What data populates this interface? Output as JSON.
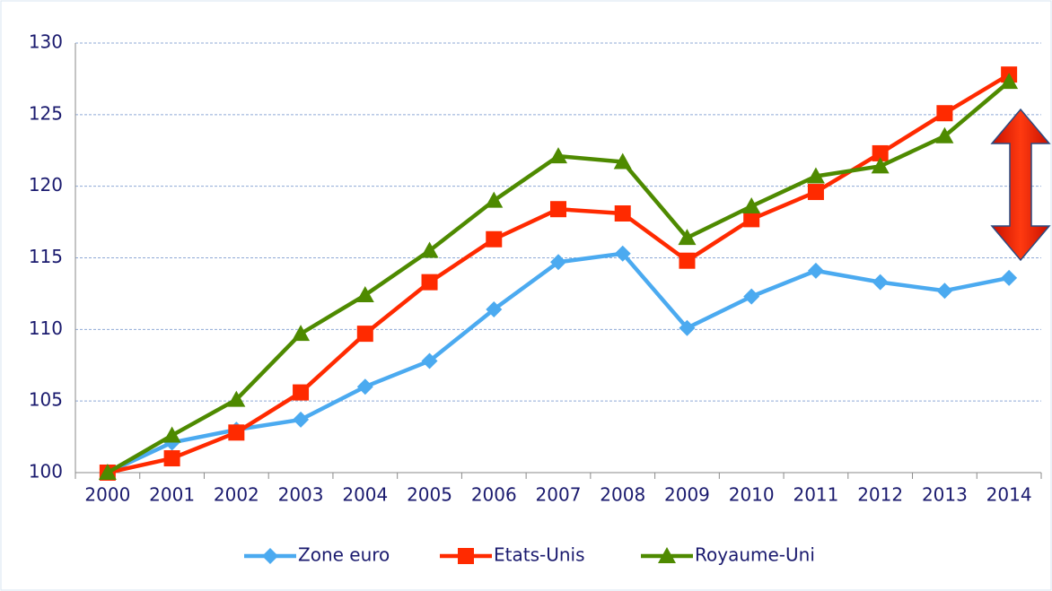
{
  "chart_data": {
    "type": "line",
    "categories": [
      "2000",
      "2001",
      "2002",
      "2003",
      "2004",
      "2005",
      "2006",
      "2007",
      "2008",
      "2009",
      "2010",
      "2011",
      "2012",
      "2013",
      "2014"
    ],
    "series": [
      {
        "name": "Zone euro",
        "color": "#4baaf0",
        "marker": "diamond",
        "values": [
          100,
          102.1,
          103.0,
          103.7,
          106.0,
          107.8,
          111.4,
          114.7,
          115.3,
          110.1,
          112.3,
          114.1,
          113.3,
          112.7,
          113.6
        ]
      },
      {
        "name": "Etats-Unis",
        "color": "#ff2a00",
        "marker": "square",
        "values": [
          100,
          101.0,
          102.8,
          105.6,
          109.7,
          113.3,
          116.3,
          118.4,
          118.1,
          114.8,
          117.7,
          119.6,
          122.3,
          125.1,
          127.8
        ]
      },
      {
        "name": "Royaume-Uni",
        "color": "#4e8a00",
        "marker": "triangle",
        "values": [
          100,
          102.6,
          105.1,
          109.7,
          112.4,
          115.5,
          119.0,
          122.1,
          121.7,
          116.4,
          118.6,
          120.7,
          121.4,
          123.5,
          127.3
        ]
      }
    ],
    "ylim": [
      100,
      130
    ],
    "yticks": [
      100,
      105,
      110,
      115,
      120,
      125,
      130
    ],
    "grid": true,
    "legend": "bottom"
  }
}
